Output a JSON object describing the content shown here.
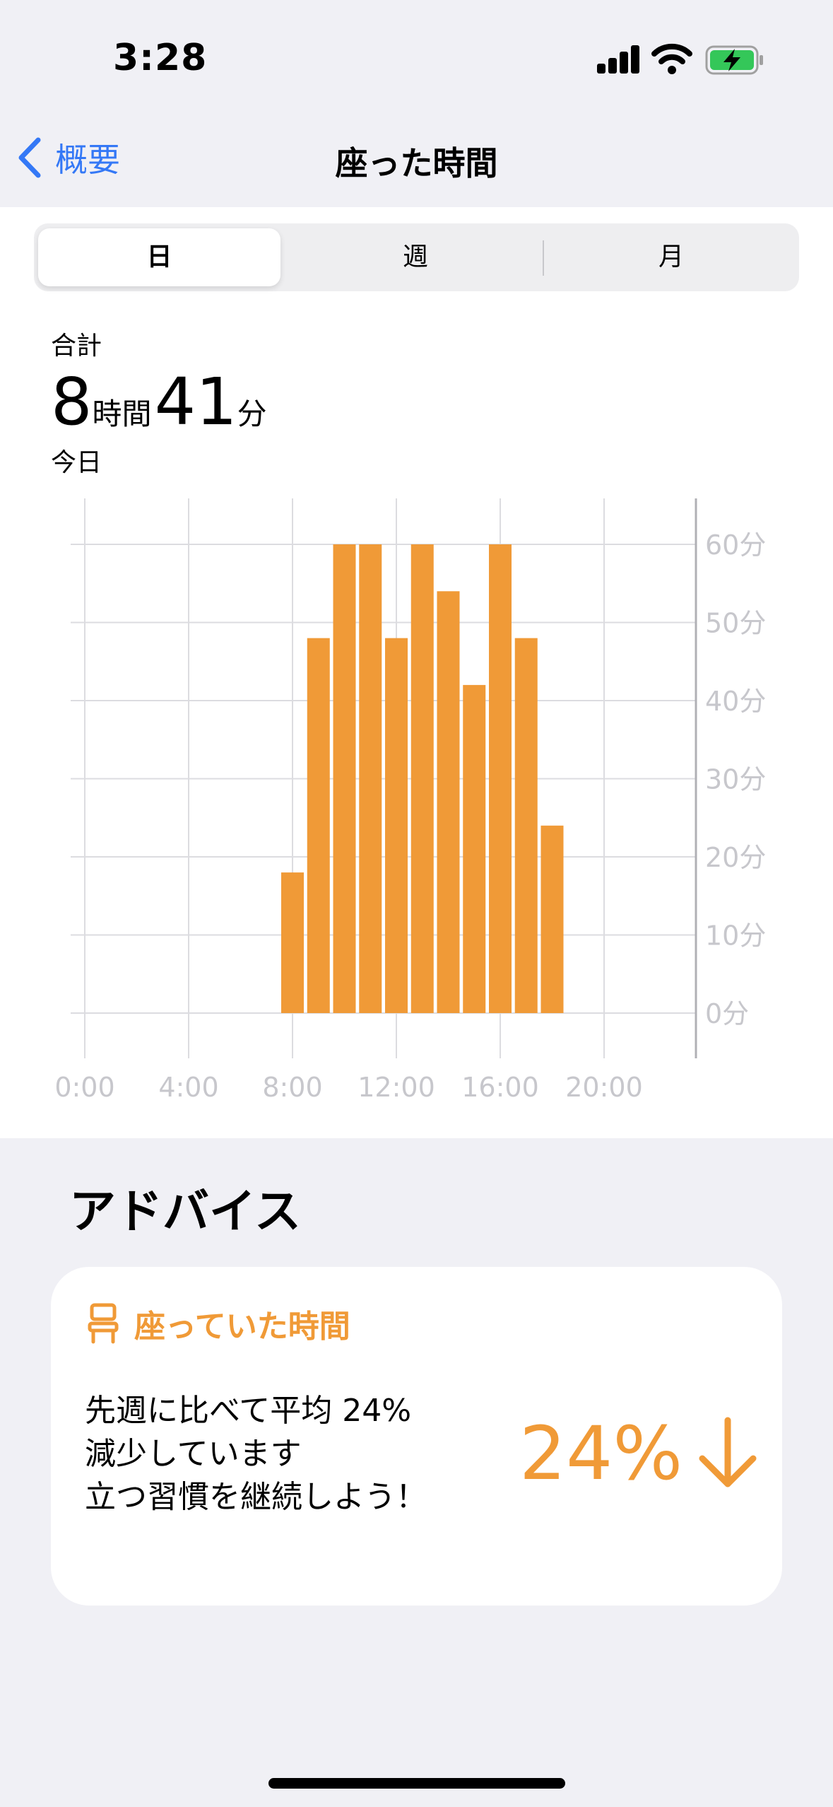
{
  "status_bar": {
    "time": "3:28",
    "icons": [
      "cellular-signal-icon",
      "wifi-icon",
      "battery-charging-icon"
    ],
    "battery_color": "#34c759"
  },
  "nav": {
    "back_label": "概要",
    "title": "座った時間"
  },
  "segments": [
    "日",
    "週",
    "月"
  ],
  "selected_segment": "日",
  "summary": {
    "label": "合計",
    "hours": "8",
    "hours_unit": "時間",
    "minutes": "41",
    "minutes_unit": "分",
    "date": "今日"
  },
  "chart_data": {
    "type": "bar",
    "x_tick_labels": [
      "0:00",
      "4:00",
      "8:00",
      "12:00",
      "16:00",
      "20:00"
    ],
    "y_tick_labels": [
      "60分",
      "50分",
      "40分",
      "30分",
      "20分",
      "10分",
      "0分"
    ],
    "ylim": [
      0,
      60
    ],
    "bar_color": "#f09a37",
    "x_hours": [
      8,
      9,
      10,
      11,
      12,
      13,
      14,
      15,
      16,
      17,
      18
    ],
    "values": [
      18,
      48,
      60,
      60,
      48,
      60,
      54,
      42,
      60,
      48,
      24
    ],
    "grid": true
  },
  "advice": {
    "heading": "アドバイス",
    "card_title": "座っていた時間",
    "body_lines": [
      "先週に比べて平均 24%",
      "減少しています",
      "立つ習慣を継続しよう！"
    ],
    "metric_value": "24%",
    "metric_direction": "down",
    "accent_color": "#f09a37"
  }
}
